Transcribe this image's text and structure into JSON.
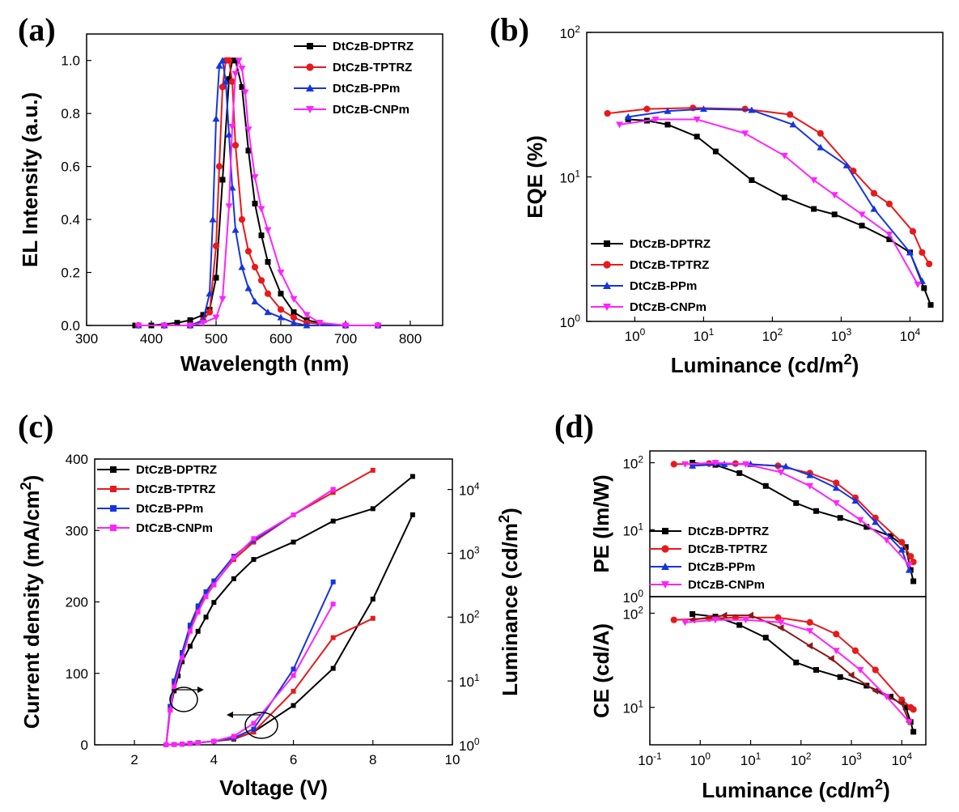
{
  "chart_data": [
    {
      "panel": "(a)",
      "type": "line",
      "xlabel": "Wavelength (nm)",
      "ylabel": "EL Intensity (a.u.)",
      "xlim": [
        300,
        850
      ],
      "ylim": [
        0,
        1.1
      ],
      "xticks": [
        300,
        400,
        500,
        600,
        700,
        800
      ],
      "yticks": [
        0.0,
        0.2,
        0.4,
        0.6,
        0.8,
        1.0
      ],
      "legend_position": "top-right",
      "series": [
        {
          "name": "DtCzB-DPTRZ",
          "color": "#000000",
          "marker": "square",
          "x": [
            375,
            400,
            440,
            460,
            480,
            490,
            500,
            510,
            520,
            525,
            530,
            540,
            550,
            560,
            570,
            580,
            600,
            620,
            640,
            660,
            700,
            750
          ],
          "y": [
            0,
            0,
            0.01,
            0.02,
            0.04,
            0.06,
            0.18,
            0.55,
            0.93,
            1.0,
            1.0,
            0.9,
            0.66,
            0.46,
            0.34,
            0.24,
            0.12,
            0.05,
            0.02,
            0.01,
            0,
            0
          ]
        },
        {
          "name": "DtCzB-TPTRZ",
          "color": "#e8191c",
          "marker": "circle",
          "x": [
            380,
            420,
            460,
            480,
            490,
            500,
            505,
            510,
            515,
            520,
            525,
            530,
            540,
            550,
            560,
            570,
            580,
            600,
            620,
            640,
            700,
            750
          ],
          "y": [
            0,
            0,
            0,
            0.02,
            0.05,
            0.3,
            0.6,
            0.9,
            1.0,
            1.0,
            0.92,
            0.68,
            0.4,
            0.28,
            0.22,
            0.17,
            0.12,
            0.06,
            0.03,
            0.01,
            0,
            0
          ]
        },
        {
          "name": "DtCzB-PPm",
          "color": "#1535e0",
          "marker": "triangle-up",
          "x": [
            380,
            420,
            460,
            480,
            490,
            495,
            500,
            505,
            510,
            515,
            520,
            525,
            530,
            540,
            550,
            560,
            580,
            600,
            620,
            640,
            700,
            750
          ],
          "y": [
            0,
            0,
            0,
            0.02,
            0.12,
            0.4,
            0.78,
            0.98,
            1.0,
            0.92,
            0.72,
            0.52,
            0.36,
            0.22,
            0.14,
            0.09,
            0.05,
            0.03,
            0.01,
            0,
            0,
            0
          ]
        },
        {
          "name": "DtCzB-CNPm",
          "color": "#ff22ff",
          "marker": "triangle-down",
          "x": [
            380,
            420,
            460,
            480,
            500,
            510,
            520,
            525,
            530,
            535,
            540,
            545,
            550,
            560,
            570,
            580,
            600,
            620,
            640,
            660,
            700,
            750
          ],
          "y": [
            0,
            0,
            0,
            0.01,
            0.03,
            0.1,
            0.45,
            0.75,
            0.95,
            1.0,
            0.97,
            0.88,
            0.74,
            0.56,
            0.44,
            0.36,
            0.2,
            0.1,
            0.04,
            0.01,
            0,
            0
          ]
        }
      ]
    },
    {
      "panel": "(b)",
      "type": "line",
      "xlabel": "Luminance (cd/m2)",
      "ylabel": "EQE (%)",
      "xscale": "log",
      "yscale": "log",
      "xlim": [
        0.2,
        30000
      ],
      "ylim": [
        1,
        100
      ],
      "xticks": [
        1,
        10,
        100,
        1000,
        10000
      ],
      "yticks": [
        1,
        10,
        100
      ],
      "legend_position": "bottom-left",
      "series": [
        {
          "name": "DtCzB-DPTRZ",
          "color": "#000000",
          "marker": "square",
          "x": [
            0.8,
            1.5,
            3,
            8,
            15,
            50,
            150,
            400,
            800,
            2000,
            5000,
            10000,
            16000,
            20000
          ],
          "y": [
            25,
            24.5,
            23,
            19,
            15,
            9.5,
            7.2,
            6,
            5.5,
            4.6,
            3.7,
            3,
            1.7,
            1.3
          ]
        },
        {
          "name": "DtCzB-TPTRZ",
          "color": "#e8191c",
          "marker": "circle",
          "x": [
            0.4,
            1.5,
            7,
            40,
            180,
            500,
            1500,
            3000,
            5000,
            11000,
            15000,
            19000
          ],
          "y": [
            27.5,
            29.5,
            30,
            29.5,
            27,
            20,
            11,
            7.7,
            6.5,
            4.2,
            3,
            2.5
          ]
        },
        {
          "name": "DtCzB-PPm",
          "color": "#1535e0",
          "marker": "triangle-up",
          "x": [
            0.8,
            3,
            10,
            50,
            200,
            500,
            1200,
            3000,
            10000,
            15000
          ],
          "y": [
            26,
            28.5,
            29.5,
            29,
            23,
            16,
            12,
            6,
            3,
            1.9
          ]
        },
        {
          "name": "DtCzB-CNPm",
          "color": "#ff22ff",
          "marker": "triangle-down",
          "x": [
            0.6,
            2,
            8,
            40,
            150,
            400,
            800,
            2000,
            5000,
            13000
          ],
          "y": [
            23,
            25,
            25,
            20,
            14,
            9.5,
            7.5,
            5.5,
            4,
            1.8
          ]
        }
      ]
    },
    {
      "panel": "(c)",
      "type": "line",
      "xlabel": "Voltage (V)",
      "ylabel": "Current density (mA/cm2)",
      "ylabel_right": "Luminance (cd/m2)",
      "xlim": [
        1,
        10
      ],
      "ylim": [
        0,
        400
      ],
      "ylim_right": [
        1,
        30000
      ],
      "yscale_right": "log",
      "xticks": [
        2,
        4,
        6,
        8,
        10
      ],
      "yticks": [
        0,
        100,
        200,
        300,
        400
      ],
      "yticks_right": [
        1,
        10,
        100,
        1000,
        10000
      ],
      "legend_position": "top-left",
      "annotations": "circles with arrows: left-bottom group -> Luminance axis (right), lower-right group -> Current density axis (left)",
      "series": [
        {
          "name": "DtCzB-DPTRZ",
          "color": "#000000",
          "marker": "square",
          "voltage": [
            2.8,
            3,
            3.2,
            3.4,
            3.6,
            4,
            4.5,
            5,
            6,
            7,
            8,
            9
          ],
          "current_density": [
            0,
            0.5,
            1,
            2,
            3,
            5,
            8,
            18,
            55,
            107,
            204,
            322
          ],
          "luminance_v": [
            2.8,
            2.9,
            3,
            3.1,
            3.2,
            3.4,
            3.6,
            3.8,
            4,
            4.5,
            5,
            6,
            7,
            8,
            9
          ],
          "luminance": [
            1,
            3.5,
            7,
            12,
            20,
            35,
            60,
            100,
            170,
            400,
            800,
            1500,
            3200,
            5000,
            16000
          ]
        },
        {
          "name": "DtCzB-TPTRZ",
          "color": "#e8191c",
          "marker": "square",
          "voltage": [
            2.8,
            3,
            3.2,
            3.4,
            3.6,
            4,
            4.5,
            5,
            6,
            7,
            8
          ],
          "current_density": [
            0,
            0.5,
            1,
            2,
            3,
            5,
            9,
            18,
            75,
            150,
            177
          ],
          "luminance_v": [
            2.8,
            2.9,
            3,
            3.2,
            3.4,
            3.6,
            3.8,
            4,
            4.5,
            5,
            6,
            7,
            8
          ],
          "luminance": [
            1,
            4,
            9,
            25,
            70,
            140,
            230,
            330,
            800,
            1500,
            4000,
            9000,
            20000
          ]
        },
        {
          "name": "DtCzB-PPm",
          "color": "#1535e0",
          "marker": "square",
          "voltage": [
            2.8,
            3,
            3.2,
            3.4,
            3.6,
            4,
            4.5,
            5,
            6,
            7
          ],
          "current_density": [
            0,
            0.5,
            1,
            2,
            3,
            5,
            10,
            22,
            106,
            228
          ],
          "luminance_v": [
            2.8,
            2.9,
            3,
            3.2,
            3.4,
            3.6,
            3.8,
            4,
            4.5,
            5,
            6,
            7
          ],
          "luminance": [
            1,
            4,
            10,
            28,
            75,
            150,
            250,
            370,
            900,
            1600,
            4000,
            10000
          ]
        },
        {
          "name": "DtCzB-CNPm",
          "color": "#ff22ff",
          "marker": "square",
          "voltage": [
            2.8,
            3,
            3.2,
            3.4,
            3.6,
            4,
            4.5,
            5,
            6,
            7
          ],
          "current_density": [
            0,
            0.5,
            1,
            2,
            3,
            5,
            12,
            30,
            97,
            197
          ],
          "luminance_v": [
            2.8,
            2.9,
            3,
            3.2,
            3.4,
            3.6,
            3.8,
            4,
            4.5,
            5,
            6,
            7
          ],
          "luminance": [
            1,
            3.5,
            8,
            23,
            60,
            120,
            210,
            320,
            850,
            1700,
            4000,
            10000
          ]
        }
      ]
    },
    {
      "panel": "(d)",
      "type": "line",
      "xlabel": "Luminance (cd/m2)",
      "xscale": "log",
      "xlim": [
        0.1,
        30000
      ],
      "xtick_labels": [
        "10-1",
        "100",
        "101",
        "102",
        "103",
        "104"
      ],
      "subplots": [
        {
          "ylabel": "PE (lm/W)",
          "yscale": "log",
          "ylim": [
            1,
            150
          ],
          "yticks": [
            1,
            10,
            100
          ],
          "legend_position": "bottom-left",
          "series": [
            {
              "name": "DtCzB-DPTRZ",
              "color": "#000000",
              "marker": "square",
              "x": [
                0.7,
                2,
                6,
                20,
                80,
                200,
                600,
                2000,
                6000,
                12000,
                15000,
                17000
              ],
              "y": [
                100,
                93,
                70,
                45,
                25,
                19,
                15,
                11,
                8,
                5.5,
                2.5,
                1.7
              ]
            },
            {
              "name": "DtCzB-TPTRZ",
              "color": "#e8191c",
              "marker": "circle",
              "x": [
                0.3,
                1.5,
                5,
                35,
                150,
                500,
                1200,
                3000,
                10000,
                15000,
                17000
              ],
              "y": [
                95,
                97,
                97,
                90,
                70,
                50,
                30,
                15,
                6.5,
                4,
                3.3
              ]
            },
            {
              "name": "DtCzB-PPm",
              "color": "#1535e0",
              "marker": "triangle-up",
              "x": [
                0.7,
                3,
                10,
                50,
                150,
                500,
                1200,
                3000,
                10000,
                14000
              ],
              "y": [
                90,
                95,
                95,
                88,
                65,
                42,
                27,
                13,
                5,
                2.5
              ]
            },
            {
              "name": "DtCzB-CNPm",
              "color": "#ff22ff",
              "marker": "triangle-down",
              "x": [
                0.5,
                2,
                8,
                40,
                150,
                500,
                1500,
                5000,
                14000
              ],
              "y": [
                95,
                100,
                95,
                72,
                45,
                25,
                14,
                7,
                3
              ]
            }
          ]
        },
        {
          "ylabel": "CE (cd/A)",
          "yscale": "log",
          "ylim": [
            4,
            150
          ],
          "yticks": [
            10,
            100
          ],
          "series": [
            {
              "name": "DtCzB-DPTRZ",
              "color": "#000000",
              "marker": "square",
              "x": [
                0.7,
                2,
                6,
                20,
                80,
                200,
                600,
                2000,
                6000,
                12000,
                15000,
                17000
              ],
              "y": [
                98,
                92,
                75,
                55,
                30,
                25,
                21,
                17,
                13,
                10,
                7,
                5.5
              ]
            },
            {
              "name": "DtCzB-TPTRZ",
              "color": "#e8191c",
              "marker": "circle",
              "x": [
                0.3,
                1.5,
                5,
                35,
                150,
                500,
                1200,
                3000,
                10000,
                15000,
                17000
              ],
              "y": [
                85,
                88,
                90,
                90,
                80,
                60,
                40,
                25,
                12,
                10,
                9.5
              ]
            },
            {
              "name": "DtCzB-PPm",
              "color": "#8b1a1a",
              "marker": "triangle-left",
              "x": [
                0.7,
                3,
                10,
                40,
                150,
                400,
                1000,
                3000,
                10000,
                14000
              ],
              "y": [
                85,
                95,
                95,
                70,
                45,
                33,
                22,
                15,
                11,
                7
              ]
            },
            {
              "name": "DtCzB-CNPm",
              "color": "#ff22ff",
              "marker": "triangle-down",
              "x": [
                0.5,
                2,
                8,
                40,
                150,
                500,
                1500,
                5000,
                14000
              ],
              "y": [
                80,
                85,
                85,
                80,
                65,
                40,
                25,
                13,
                7
              ]
            }
          ]
        }
      ]
    }
  ]
}
